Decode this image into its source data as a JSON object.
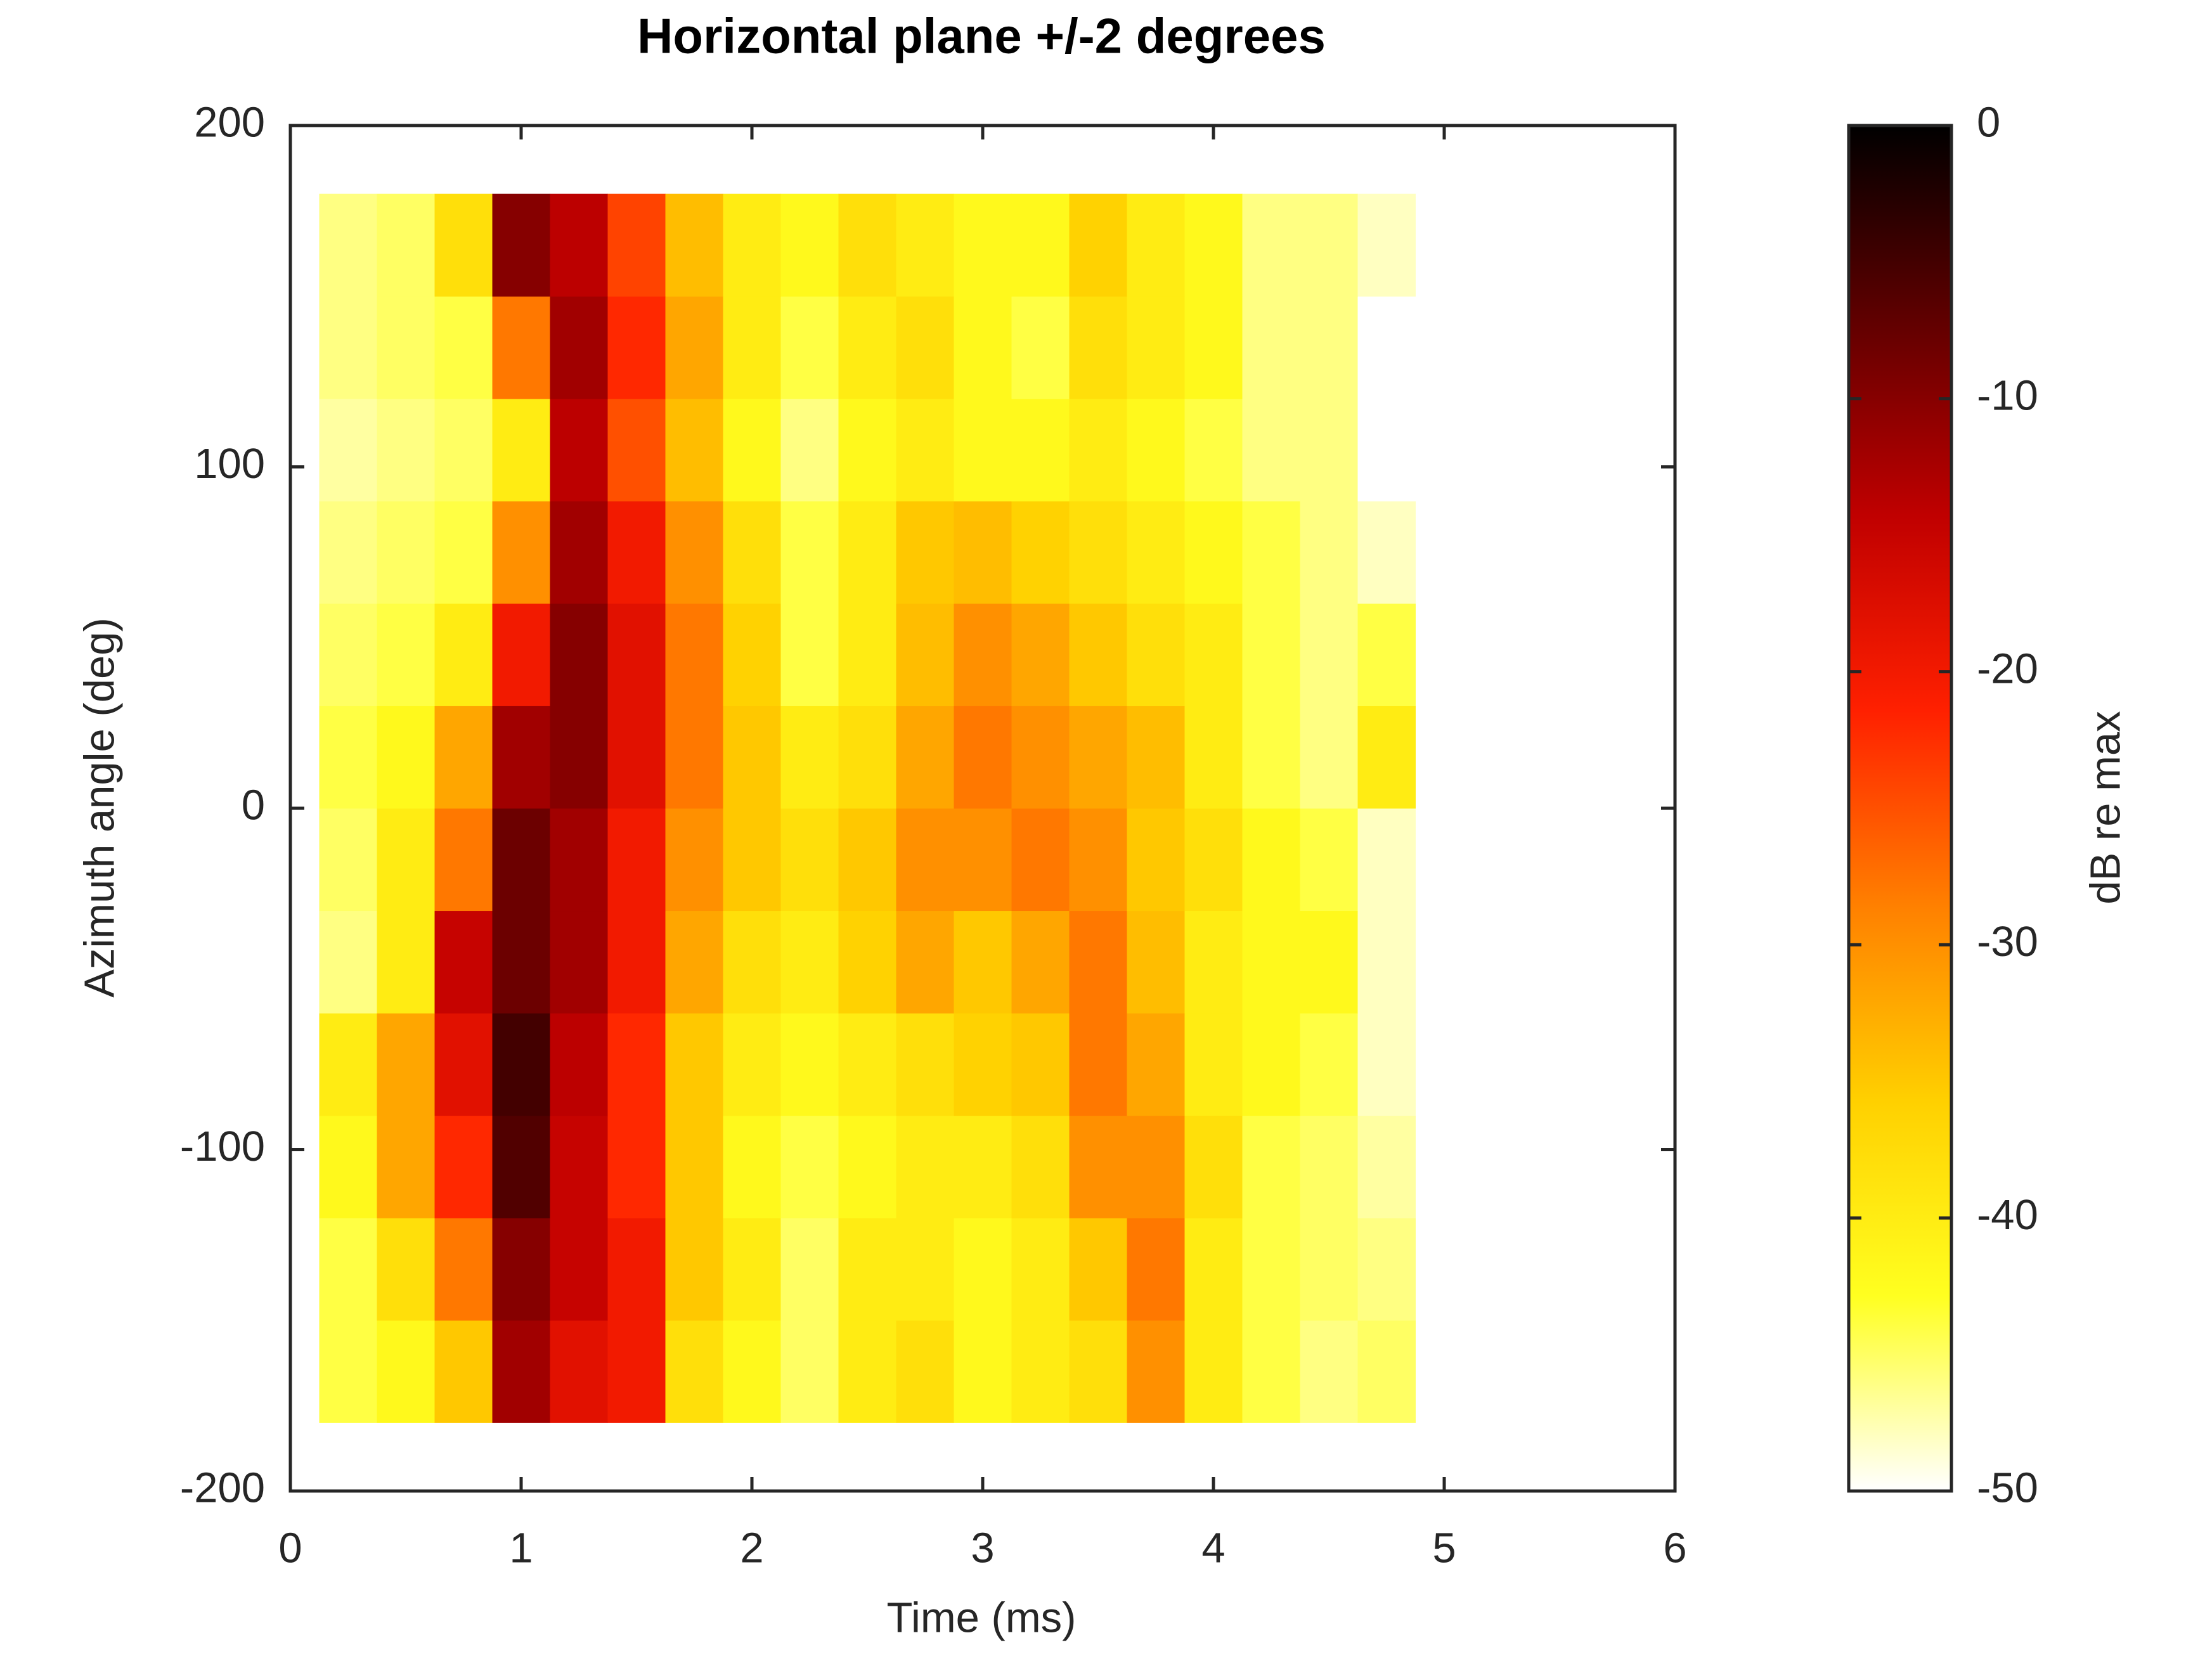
{
  "chart_data": {
    "type": "heatmap",
    "title": "Horizontal plane +/-2 degrees",
    "xlabel": "Time (ms)",
    "ylabel": "Azimuth angle (deg)",
    "colorbar_label": "dB re max",
    "x": [
      0.25,
      0.5,
      0.75,
      1.0,
      1.25,
      1.5,
      1.75,
      2.0,
      2.25,
      2.5,
      2.75,
      3.0,
      3.25,
      3.5,
      3.75,
      4.0,
      4.25,
      4.5,
      4.75
    ],
    "y": [
      -165,
      -135,
      -105,
      -75,
      -45,
      -15,
      15,
      45,
      75,
      105,
      135,
      165
    ],
    "z": [
      [
        -44,
        -42,
        -35,
        -12,
        -18,
        -20,
        -38,
        -42,
        -45,
        -40,
        -38,
        -42,
        -40,
        -38,
        -30,
        -40,
        -44,
        -46,
        -45
      ],
      [
        -44,
        -38,
        -28,
        -10,
        -15,
        -20,
        -35,
        -40,
        -45,
        -40,
        -40,
        -42,
        -40,
        -35,
        -28,
        -40,
        -44,
        -45,
        -46
      ],
      [
        -42,
        -32,
        -22,
        -6,
        -15,
        -22,
        -35,
        -42,
        -44,
        -42,
        -40,
        -40,
        -38,
        -30,
        -30,
        -38,
        -44,
        -45,
        -47
      ],
      [
        -40,
        -32,
        -18,
        -5,
        -14,
        -22,
        -35,
        -40,
        -42,
        -40,
        -38,
        -36,
        -35,
        -28,
        -32,
        -40,
        -42,
        -44,
        -48
      ],
      [
        -46,
        -40,
        -15,
        -8,
        -12,
        -20,
        -32,
        -38,
        -40,
        -36,
        -32,
        -35,
        -32,
        -28,
        -34,
        -40,
        -42,
        -42,
        -48
      ],
      [
        -45,
        -40,
        -28,
        -8,
        -12,
        -20,
        -30,
        -35,
        -38,
        -35,
        -30,
        -30,
        -28,
        -30,
        -35,
        -38,
        -42,
        -44,
        -48
      ],
      [
        -44,
        -42,
        -32,
        -12,
        -10,
        -18,
        -28,
        -35,
        -40,
        -38,
        -32,
        -28,
        -30,
        -32,
        -34,
        -40,
        -44,
        -46,
        -40
      ],
      [
        -45,
        -44,
        -40,
        -20,
        -10,
        -18,
        -28,
        -36,
        -44,
        -40,
        -34,
        -30,
        -32,
        -35,
        -38,
        -40,
        -44,
        -46,
        -44
      ],
      [
        -46,
        -45,
        -44,
        -30,
        -12,
        -20,
        -30,
        -38,
        -44,
        -40,
        -35,
        -34,
        -36,
        -38,
        -40,
        -42,
        -44,
        -46,
        -48
      ],
      [
        -47,
        -46,
        -45,
        -40,
        -14,
        -25,
        -34,
        -42,
        -46,
        -42,
        -40,
        -42,
        -42,
        -40,
        -42,
        -44,
        -46,
        -46,
        -50
      ],
      [
        -46,
        -45,
        -44,
        -28,
        -12,
        -22,
        -32,
        -40,
        -44,
        -40,
        -38,
        -42,
        -44,
        -38,
        -40,
        -42,
        -46,
        -46,
        -50
      ],
      [
        -46,
        -45,
        -38,
        -10,
        -14,
        -24,
        -34,
        -40,
        -42,
        -38,
        -40,
        -42,
        -42,
        -36,
        -40,
        -42,
        -46,
        -46,
        -48
      ]
    ],
    "xlim": [
      0,
      6
    ],
    "xticks": [
      0,
      1,
      2,
      3,
      4,
      5,
      6
    ],
    "ylim": [
      -200,
      200
    ],
    "yticks": [
      -200,
      -100,
      0,
      100,
      200
    ],
    "zlim": [
      -50,
      0
    ],
    "zticks": [
      -50,
      -40,
      -30,
      -20,
      -10,
      0
    ],
    "colormap": [
      "#ffffff",
      "#ffff20",
      "#ffd000",
      "#ff8000",
      "#ff2000",
      "#c00000",
      "#600000",
      "#000000"
    ]
  }
}
